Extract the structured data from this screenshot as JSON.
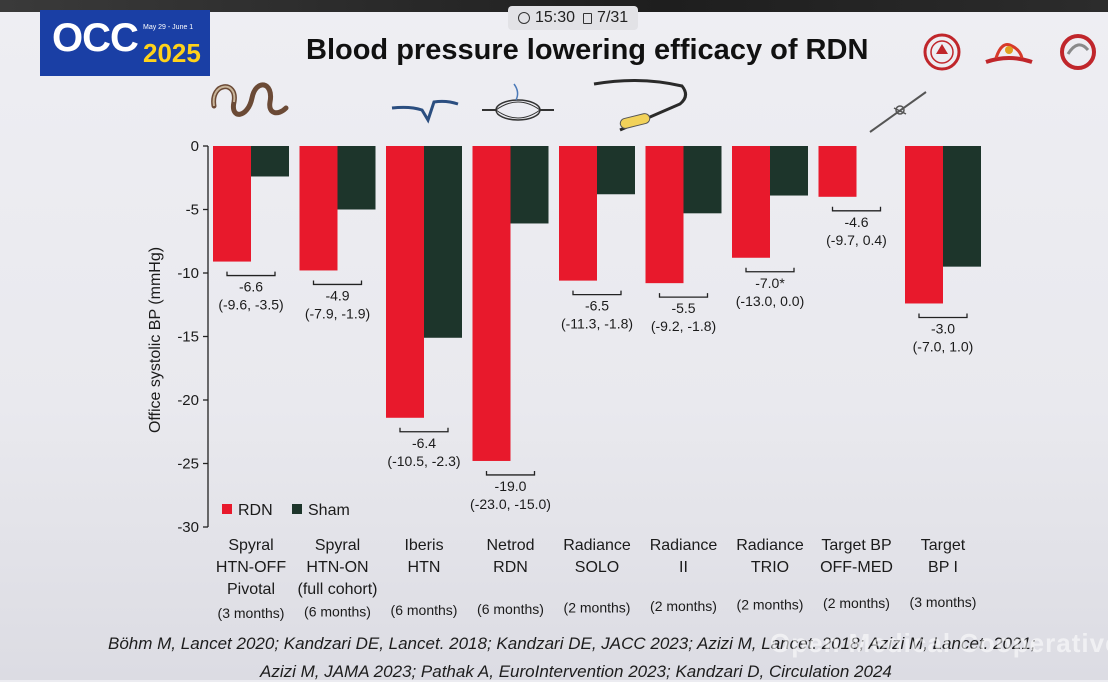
{
  "status": {
    "time": "15:30",
    "page": "7/31"
  },
  "logo": {
    "text": "OCC",
    "year": "2025",
    "dates": "May 29 - June 1"
  },
  "title": "Blood pressure lowering efficacy of RDN",
  "references": {
    "line1": "Böhm M, Lancet 2020; Kandzari DE, Lancet. 2018; Kandzari DE, JACC 2023; Azizi M, Lancet. 2018; Azizi M, Lancet. 2021;",
    "line2": "Azizi M, JAMA 2023; Pathak A, EuroIntervention 2023; Kandzari D, Circulation 2024"
  },
  "watermark": "Open Medical Cooperative",
  "colors": {
    "rdn": "#e8192c",
    "sham": "#1d352b",
    "logo_bg": "#1a3fa5",
    "logo_year": "#ffd21a"
  },
  "icons": [
    "clock-icon",
    "page-icon",
    "university-logo",
    "dragon-logo",
    "circle-logo",
    "coil-catheter-icon",
    "ultrasound-catheter-icon",
    "basket-catheter-icon",
    "balloon-catheter-icon",
    "needle-catheter-icon"
  ],
  "chart_data": {
    "type": "bar",
    "ylabel": "Office systolic BP (mmHg)",
    "xlabel": "",
    "ylim": [
      -30,
      0
    ],
    "yticks": [
      0,
      -5,
      -10,
      -15,
      -20,
      -25,
      -30
    ],
    "legend": {
      "position": "bottom-left"
    },
    "categories": [
      {
        "lines": [
          "Spyral",
          "HTN-OFF",
          "Pivotal"
        ],
        "duration": "(3 months)"
      },
      {
        "lines": [
          "Spyral",
          "HTN-ON",
          "(full cohort)"
        ],
        "duration": "(6 months)"
      },
      {
        "lines": [
          "Iberis",
          "HTN"
        ],
        "duration": "(6 months)"
      },
      {
        "lines": [
          "Netrod",
          "RDN"
        ],
        "duration": "(6 months)"
      },
      {
        "lines": [
          "Radiance",
          "SOLO"
        ],
        "duration": "(2 months)"
      },
      {
        "lines": [
          "Radiance",
          "II"
        ],
        "duration": "(2 months)"
      },
      {
        "lines": [
          "Radiance",
          "TRIO"
        ],
        "duration": "(2 months)"
      },
      {
        "lines": [
          "Target BP",
          "OFF-MED"
        ],
        "duration": "(2 months)"
      },
      {
        "lines": [
          "Target",
          "BP I"
        ],
        "duration": "(3 months)"
      }
    ],
    "series": [
      {
        "name": "RDN",
        "color": "#e8192c",
        "values": [
          -9.1,
          -9.8,
          -21.4,
          -24.8,
          -10.6,
          -10.8,
          -8.8,
          -4.0,
          -12.4
        ]
      },
      {
        "name": "Sham",
        "color": "#1d352b",
        "values": [
          -2.4,
          -5.0,
          -15.1,
          -6.1,
          -3.8,
          -5.3,
          -3.9,
          0,
          -9.5
        ]
      }
    ],
    "annotations": [
      {
        "diff": "-6.6",
        "ci": "(-9.6, -3.5)"
      },
      {
        "diff": "-4.9",
        "ci": "(-7.9, -1.9)"
      },
      {
        "diff": "-6.4",
        "ci": "(-10.5, -2.3)"
      },
      {
        "diff": "-19.0",
        "ci": "(-23.0, -15.0)"
      },
      {
        "diff": "-6.5",
        "ci": "(-11.3, -1.8)"
      },
      {
        "diff": "-5.5",
        "ci": "(-9.2, -1.8)"
      },
      {
        "diff": "-7.0*",
        "ci": "(-13.0, 0.0)"
      },
      {
        "diff": "-4.6",
        "ci": "(-9.7, 0.4)"
      },
      {
        "diff": "-3.0",
        "ci": "(-7.0, 1.0)"
      }
    ]
  }
}
